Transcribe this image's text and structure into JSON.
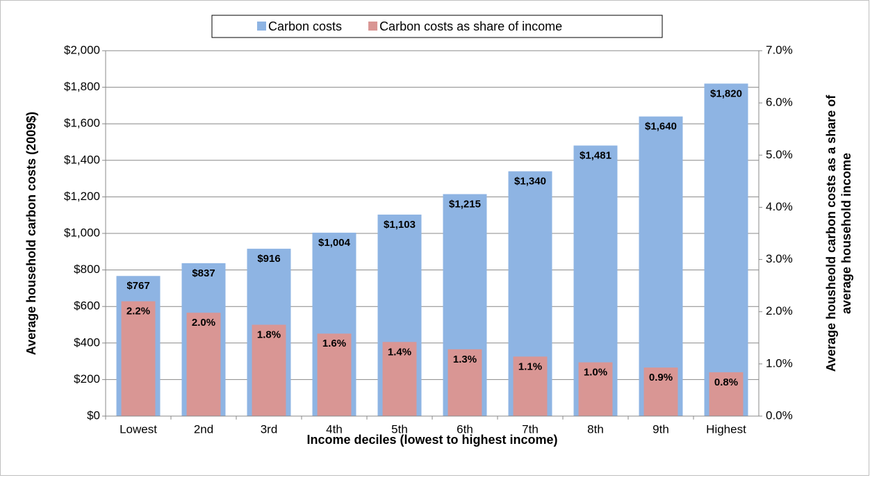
{
  "chart_data": {
    "type": "bar",
    "x_label": "Income deciles (lowest to highest income)",
    "y_label": "Average household carbon costs (2009$)",
    "y2_label": "Average housheold carbon costs as a share of average household income",
    "categories": [
      "Lowest",
      "2nd",
      "3rd",
      "4th",
      "5th",
      "6th",
      "7th",
      "8th",
      "9th",
      "Highest"
    ],
    "series": [
      {
        "name": "Carbon costs",
        "color": "#8eb4e3",
        "values": [
          767,
          837,
          916,
          1004,
          1103,
          1215,
          1340,
          1481,
          1640,
          1820
        ],
        "value_labels": [
          "$767",
          "$837",
          "$916",
          "$1,004",
          "$1,103",
          "$1,215",
          "$1,340",
          "$1,481",
          "$1,640",
          "$1,820"
        ]
      },
      {
        "name": "Carbon costs as share of income",
        "color": "#d99694",
        "axis": "y2",
        "values": [
          2.2,
          1.98,
          1.75,
          1.58,
          1.42,
          1.28,
          1.14,
          1.03,
          0.93,
          0.84
        ],
        "value_labels": [
          "2.2%",
          "2.0%",
          "1.8%",
          "1.6%",
          "1.4%",
          "1.3%",
          "1.1%",
          "1.0%",
          "0.9%",
          "0.8%"
        ]
      }
    ],
    "ylim": [
      0,
      2000
    ],
    "yticks": [
      {
        "value": 0,
        "label": "$0"
      },
      {
        "value": 200,
        "label": "$200"
      },
      {
        "value": 400,
        "label": "$400"
      },
      {
        "value": 600,
        "label": "$600"
      },
      {
        "value": 800,
        "label": "$800"
      },
      {
        "value": 1000,
        "label": "$1,000"
      },
      {
        "value": 1200,
        "label": "$1,200"
      },
      {
        "value": 1400,
        "label": "$1,400"
      },
      {
        "value": 1600,
        "label": "$1,600"
      },
      {
        "value": 1800,
        "label": "$1,800"
      },
      {
        "value": 2000,
        "label": "$2,000"
      }
    ],
    "y2lim": [
      0,
      7
    ],
    "y2ticks": [
      {
        "value": 0,
        "label": "0.0%"
      },
      {
        "value": 1,
        "label": "1.0%"
      },
      {
        "value": 2,
        "label": "2.0%"
      },
      {
        "value": 3,
        "label": "3.0%"
      },
      {
        "value": 4,
        "label": "4.0%"
      },
      {
        "value": 5,
        "label": "5.0%"
      },
      {
        "value": 6,
        "label": "6.0%"
      },
      {
        "value": 7,
        "label": "7.0%"
      }
    ],
    "grid": true,
    "legend": "top"
  }
}
